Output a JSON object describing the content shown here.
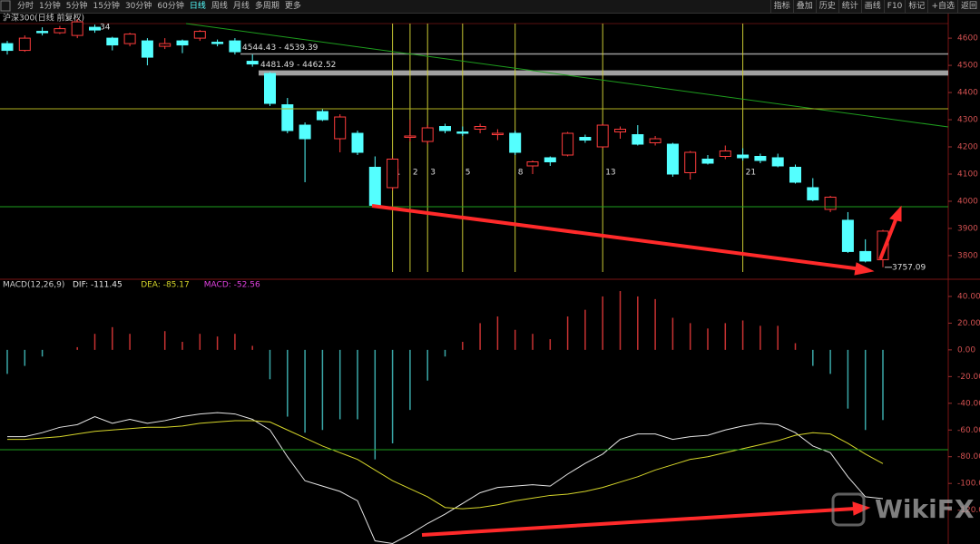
{
  "toolbar": {
    "tabs": [
      "分时",
      "1分钟",
      "5分钟",
      "15分钟",
      "30分钟",
      "60分钟",
      "日线",
      "周线",
      "月线",
      "多周期",
      "更多"
    ],
    "buttons": [
      "指标",
      "叠加",
      "历史",
      "统计",
      "画线",
      "F10",
      "标记",
      "+自选",
      "返回"
    ]
  },
  "watermark": "WikiFX",
  "chart_data": [
    {
      "type": "candlestick",
      "title": "沪深300(日线 前复权)",
      "open": [
        4580,
        4555,
        4625,
        4620,
        4610,
        4640,
        4600,
        4580,
        4590,
        4570,
        4590,
        4600,
        4585,
        4590,
        4515,
        4470,
        4355,
        4280,
        4330,
        4230,
        4250,
        4125,
        4050,
        4235,
        4220,
        4275,
        4255,
        4265,
        4245,
        4250,
        4130,
        4160,
        4170,
        4235,
        4200,
        4255,
        4245,
        4215,
        4210,
        4105,
        4155,
        4165,
        4170,
        4165,
        4160,
        4125,
        4050,
        3970,
        3930,
        3815,
        3785
      ],
      "close": [
        4555,
        4600,
        4620,
        4635,
        4660,
        4630,
        4575,
        4615,
        4530,
        4580,
        4575,
        4625,
        4580,
        4550,
        4505,
        4360,
        4260,
        4230,
        4300,
        4310,
        4180,
        3985,
        4155,
        4240,
        4270,
        4260,
        4250,
        4275,
        4250,
        4180,
        4145,
        4145,
        4250,
        4225,
        4280,
        4265,
        4210,
        4230,
        4100,
        4180,
        4140,
        4185,
        4160,
        4150,
        4130,
        4070,
        4005,
        4015,
        3815,
        3780,
        3890
      ],
      "high": [
        4590,
        4610,
        4640,
        4645,
        4670,
        4650,
        4605,
        4620,
        4600,
        4600,
        4595,
        4630,
        4595,
        4600,
        4540,
        4475,
        4380,
        4290,
        4340,
        4320,
        4260,
        4165,
        4160,
        4300,
        4280,
        4285,
        4275,
        4285,
        4265,
        4260,
        4150,
        4165,
        4255,
        4245,
        4285,
        4275,
        4280,
        4240,
        4215,
        4185,
        4170,
        4205,
        4195,
        4175,
        4175,
        4135,
        4085,
        4020,
        3960,
        3860,
        3895
      ],
      "low": [
        4540,
        4550,
        4610,
        4615,
        4600,
        4620,
        4555,
        4570,
        4500,
        4560,
        4545,
        4590,
        4570,
        4540,
        4495,
        4350,
        4250,
        4070,
        4295,
        4180,
        4170,
        3980,
        4040,
        4220,
        4210,
        4250,
        4240,
        4250,
        4225,
        4170,
        4100,
        4130,
        4165,
        4215,
        4195,
        4230,
        4205,
        4205,
        4090,
        4080,
        4135,
        4155,
        4150,
        4140,
        4125,
        4065,
        4000,
        3960,
        3810,
        3775,
        3757.09
      ],
      "up_color": "#ff3c3c",
      "down_color": "#54ffff",
      "ylim": [
        3713,
        4657
      ],
      "yticks": [
        3800,
        3900,
        4000,
        4100,
        4200,
        4300,
        4400,
        4500,
        4600
      ],
      "bands": [
        {
          "top": 4544.43,
          "bottom": 4539.39,
          "label": "4544.43 - 4539.39",
          "color": "#9a9a9a"
        },
        {
          "top": 4481.49,
          "bottom": 4462.52,
          "label": "4481.49 - 4462.52",
          "color": "#a0a0a0"
        }
      ],
      "fib_lines": [
        1,
        2,
        3,
        5,
        8,
        13,
        21
      ],
      "annotations": [
        "34",
        "3757.09"
      ]
    },
    {
      "type": "macd",
      "title": "MACD(12,26,9)",
      "series": [
        {
          "name": "DIF: -111.45",
          "color": "#e6e6e6",
          "values": [
            -65,
            -65,
            -62,
            -58,
            -56,
            -50,
            -55,
            -52,
            -55,
            -53,
            -50,
            -48,
            -47,
            -48,
            -52,
            -60,
            -80,
            -98,
            -102,
            -106,
            -113,
            -143,
            -145,
            -138,
            -130,
            -123,
            -115,
            -107,
            -103,
            -102,
            -101,
            -102,
            -93,
            -85,
            -78,
            -67,
            -63,
            -63,
            -67,
            -65,
            -64,
            -60,
            -57,
            -55,
            -56,
            -62,
            -72,
            -77,
            -95,
            -110,
            -111.45
          ]
        },
        {
          "name": "DEA: -85.17",
          "color": "#d6d62a",
          "values": [
            -67,
            -67,
            -66,
            -65,
            -63,
            -61,
            -60,
            -59,
            -58,
            -58,
            -57,
            -55,
            -54,
            -53,
            -53,
            -54,
            -60,
            -66,
            -72,
            -77,
            -82,
            -90,
            -98,
            -104,
            -110,
            -118,
            -119,
            -118,
            -116,
            -113,
            -111,
            -109,
            -108,
            -106,
            -103,
            -99,
            -95,
            -90,
            -86,
            -82,
            -80,
            -77,
            -74,
            -71,
            -68,
            -64,
            -62,
            -63,
            -70,
            -78,
            -85.17
          ]
        },
        {
          "name": "MACD: -52.56",
          "type": "bar",
          "color": "#e040e0",
          "up_color": "#c83232",
          "down_color": "#3aa8a8",
          "values": [
            -18,
            -12,
            -5,
            0,
            2,
            12,
            17,
            12,
            0,
            14,
            6,
            12,
            10,
            12,
            3,
            -22,
            -50,
            -62,
            -60,
            -52,
            -52,
            -82,
            -70,
            -45,
            -23,
            -5,
            6,
            20,
            25,
            15,
            12,
            8,
            25,
            30,
            40,
            44,
            40,
            38,
            24,
            20,
            16,
            20,
            22,
            18,
            18,
            5,
            -12,
            -18,
            -44,
            -60,
            -52.56
          ]
        }
      ],
      "ylim": [
        -144,
        51.5
      ],
      "yticks": [
        {
          "value": 40,
          "label": "40.00"
        },
        {
          "value": 20,
          "label": "20.00"
        },
        {
          "value": 0,
          "label": "0.00"
        },
        {
          "value": -20,
          "label": "-20.00"
        },
        {
          "value": -40,
          "label": "-40.00"
        },
        {
          "value": -60,
          "label": "-60.00"
        },
        {
          "value": -80,
          "label": "-80.00"
        },
        {
          "value": -100,
          "label": "-100.00"
        },
        {
          "value": -120,
          "label": "-120.00"
        }
      ]
    }
  ]
}
